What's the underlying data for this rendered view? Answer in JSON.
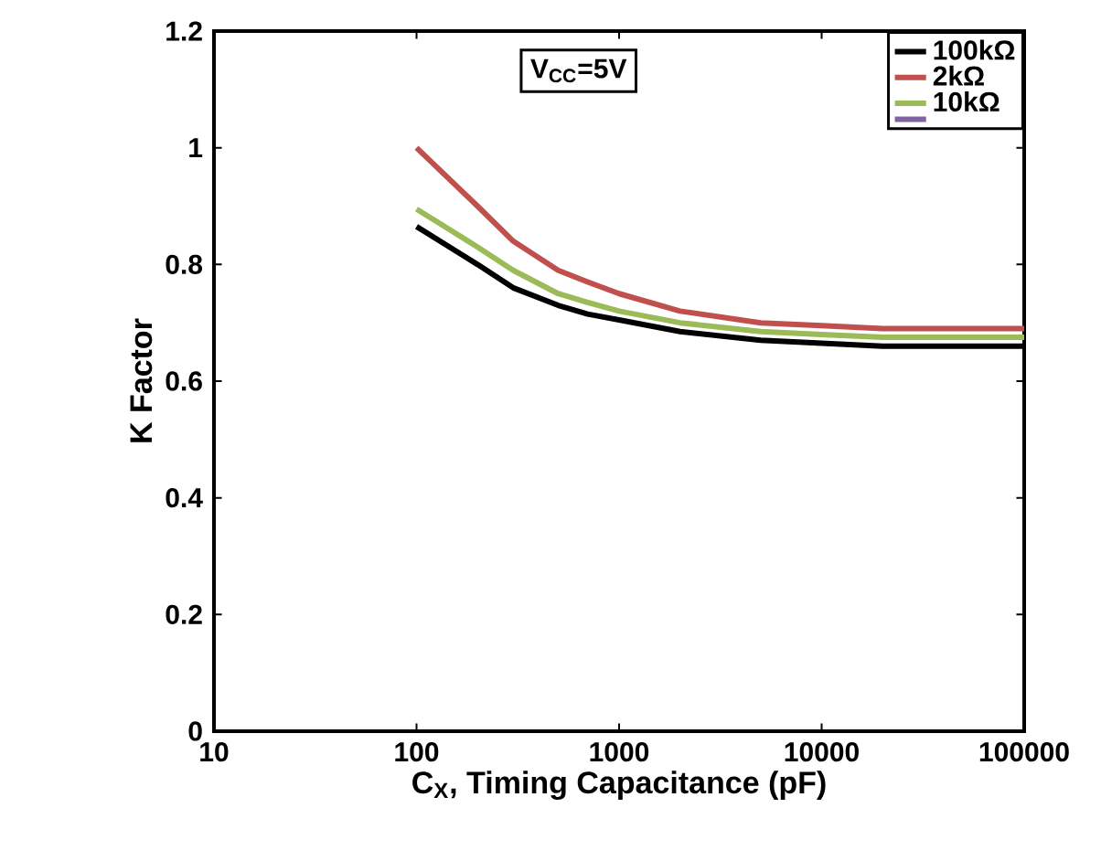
{
  "chart_data": {
    "type": "line",
    "xlabel": "C$_{X}$, Timing Capacitance  (pF)",
    "ylabel": "K Factor",
    "log": "x",
    "xlim": [
      10,
      100000
    ],
    "xticks": [
      10,
      100,
      1000,
      10000,
      100000
    ],
    "ylim": [
      0,
      1.2
    ],
    "yticks": [
      0,
      0.2,
      0.4,
      0.6,
      0.8,
      1,
      1.2
    ],
    "x": [
      100,
      200,
      300,
      500,
      700,
      1000,
      2000,
      5000,
      10000,
      20000,
      50000,
      100000
    ],
    "series": [
      {
        "name": "100kΩ",
        "color": "#000000",
        "values": [
          0.865,
          0.8,
          0.76,
          0.73,
          0.715,
          0.705,
          0.685,
          0.67,
          0.665,
          0.66,
          0.66,
          0.66
        ]
      },
      {
        "name": "2kΩ",
        "color": "#c0504d",
        "values": [
          1.0,
          0.9,
          0.84,
          0.79,
          0.77,
          0.75,
          0.72,
          0.7,
          0.695,
          0.69,
          0.69,
          0.69
        ]
      },
      {
        "name": "10kΩ",
        "color": "#9bbb59",
        "values": [
          0.895,
          0.83,
          0.79,
          0.75,
          0.735,
          0.72,
          0.7,
          0.685,
          0.68,
          0.675,
          0.675,
          0.675
        ]
      },
      {
        "color": "#8064a2",
        "values": [
          null,
          null,
          null,
          null,
          null,
          null,
          null,
          null,
          null,
          null,
          null,
          null
        ]
      }
    ],
    "annotations": [
      "V$_{CC}$=5V"
    ],
    "legend": "top right",
    "grid": false,
    "marker": "none",
    "line_style": "solid"
  }
}
